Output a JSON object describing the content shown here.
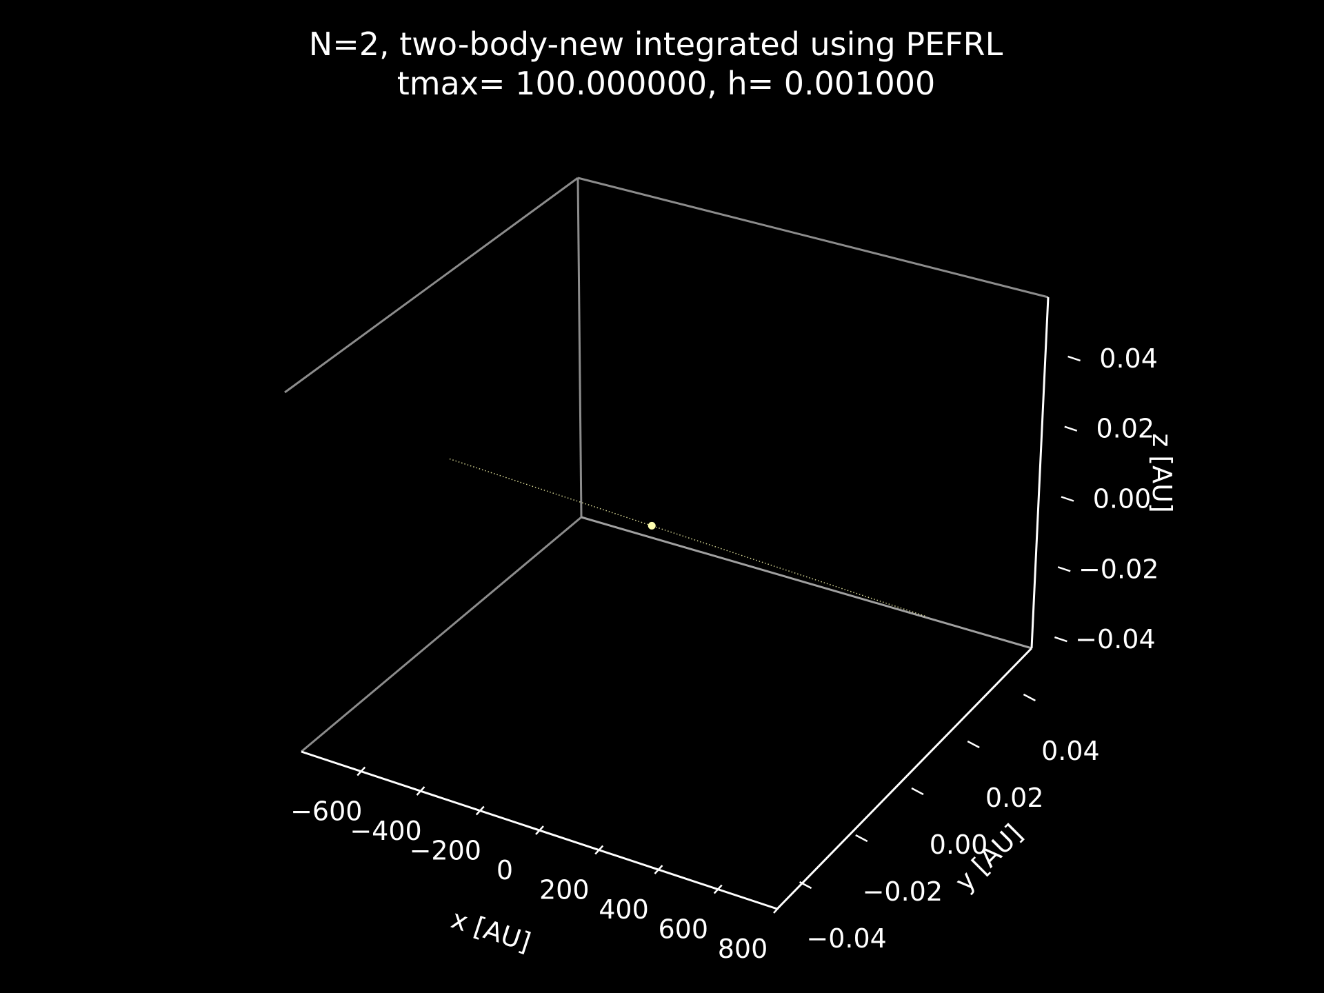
{
  "chart_data": {
    "type": "line",
    "projection": "3d",
    "title": "N=2, two-body-new integrated using PEFRL",
    "subtitle": "tmax= 100.000000, h= 0.001000",
    "xlabel": "x [AU]",
    "ylabel": "y [AU]",
    "zlabel": "z [AU]",
    "xlim": [
      -800,
      800
    ],
    "ylim": [
      -0.05,
      0.05
    ],
    "zlim": [
      -0.05,
      0.05
    ],
    "x_ticks": [
      "−600",
      "−400",
      "−200",
      "0",
      "200",
      "400",
      "600",
      "800"
    ],
    "y_ticks": [
      "−0.04",
      "−0.02",
      "0.00",
      "0.02",
      "0.04"
    ],
    "z_ticks": [
      "−0.04",
      "−0.02",
      "0.00",
      "0.02",
      "0.04"
    ],
    "background": "#000000",
    "pane_edge_color": "#8c8c8c",
    "axis_color": "#ffffff",
    "grid": false,
    "series": [
      {
        "color": "#ffffb0",
        "style": "dotted",
        "x": [
          -800,
          800
        ],
        "y": [
          0,
          0
        ],
        "z": [
          0,
          0
        ]
      }
    ],
    "points": [
      {
        "x": -120,
        "y": 0,
        "z": 0,
        "color": "#ffffb0"
      }
    ]
  }
}
